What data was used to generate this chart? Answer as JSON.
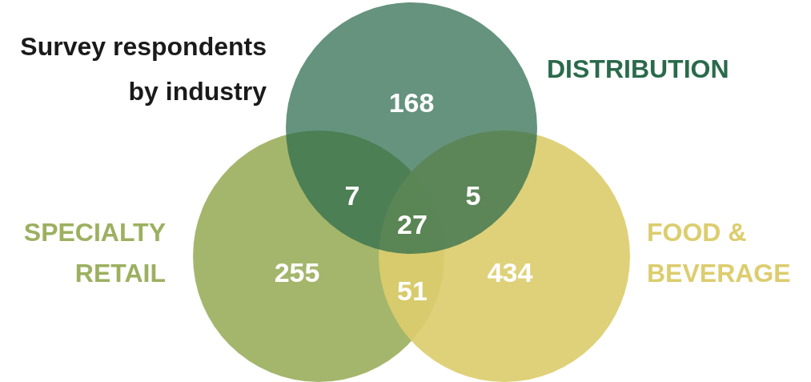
{
  "chart_data": {
    "type": "other",
    "title": "Survey respondents by industry",
    "categories": [
      "DISTRIBUTION",
      "SPECIALTY RETAIL",
      "FOOD & BEVERAGE"
    ],
    "values": [
      168,
      255,
      434
    ],
    "colors": [
      "#2a6a4b",
      "#9cb060",
      "#dccd6e"
    ],
    "data_labels": true,
    "annotations": [
      "7",
      "5",
      "51",
      "27"
    ]
  }
}
